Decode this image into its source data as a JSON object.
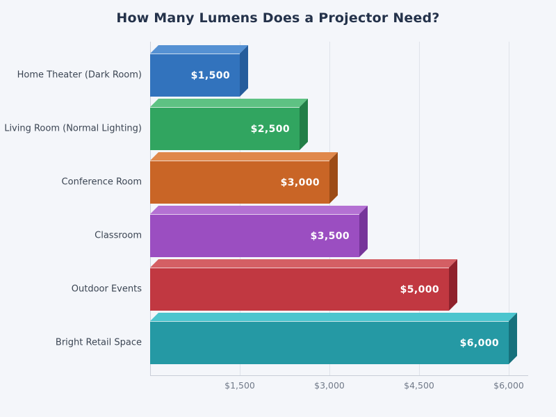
{
  "title": "How Many Lumens Does a Projector Need?",
  "colors": {
    "background": "#f4f6fa",
    "title": "#24324a",
    "category_label": "#3b4553",
    "tick_label": "#717a89",
    "gridline": "#dfe3ea",
    "axis": "#c8cdd7",
    "value_label": "#ffffff"
  },
  "chart_data": {
    "type": "bar",
    "orientation": "horizontal",
    "style": "3d",
    "title": "How Many Lumens Does a Projector Need?",
    "categories": [
      "Home Theater (Dark Room)",
      "Living Room (Normal Lighting)",
      "Conference Room",
      "Classroom",
      "Outdoor Events",
      "Bright Retail Space"
    ],
    "values": [
      1500,
      2500,
      3000,
      3500,
      5000,
      6000
    ],
    "value_labels": [
      "$1,500",
      "$2,500",
      "$3,000",
      "$3,500",
      "$5,000",
      "$6,000"
    ],
    "bar_colors": [
      {
        "name": "blue",
        "front": "#3273bd",
        "top": "#5591d3",
        "side": "#265d9c"
      },
      {
        "name": "green",
        "front": "#31a560",
        "top": "#5ec283",
        "side": "#227e47"
      },
      {
        "name": "orange",
        "front": "#c96526",
        "top": "#e0884b",
        "side": "#9c4c16"
      },
      {
        "name": "purple",
        "front": "#9b4ec1",
        "top": "#b471d3",
        "side": "#76359a"
      },
      {
        "name": "red",
        "front": "#c13841",
        "top": "#d45f64",
        "side": "#8f222c"
      },
      {
        "name": "teal",
        "front": "#2599a4",
        "top": "#4cc5ce",
        "side": "#17717c"
      }
    ],
    "xlabel": "",
    "ylabel": "",
    "xlim": [
      0,
      6000
    ],
    "x_ticks": [
      {
        "value": 1500,
        "label": "$1,500"
      },
      {
        "value": 3000,
        "label": "$3,000"
      },
      {
        "value": 4500,
        "label": "$4,500"
      },
      {
        "value": 6000,
        "label": "$6,000"
      }
    ],
    "grid": true,
    "legend": false
  }
}
